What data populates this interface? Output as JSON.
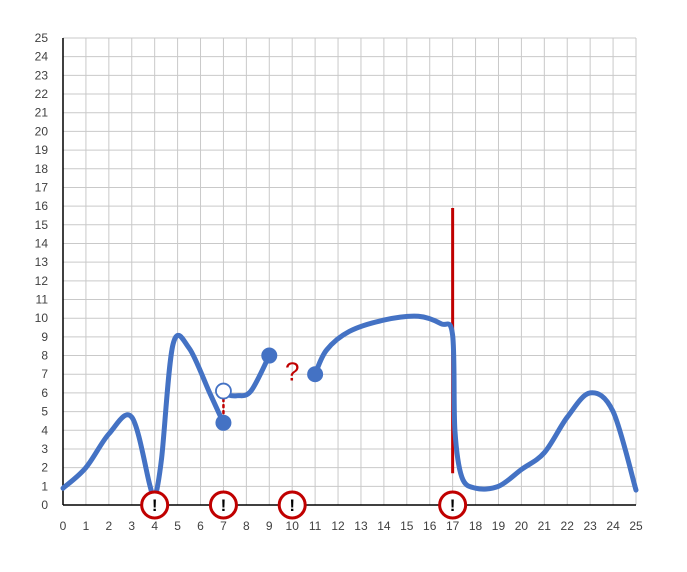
{
  "chart_data": {
    "type": "line",
    "title": "",
    "xlabel": "",
    "ylabel": "",
    "xlim": [
      0,
      25
    ],
    "ylim": [
      0,
      25
    ],
    "x_ticks": [
      "0",
      "1",
      "2",
      "3",
      "4",
      "5",
      "6",
      "7",
      "8",
      "9",
      "10",
      "11",
      "12",
      "13",
      "14",
      "15",
      "16",
      "17",
      "18",
      "19",
      "20",
      "21",
      "22",
      "23",
      "24",
      "25"
    ],
    "y_ticks": [
      "0",
      "1",
      "2",
      "3",
      "4",
      "5",
      "6",
      "7",
      "8",
      "9",
      "10",
      "11",
      "12",
      "13",
      "14",
      "15",
      "16",
      "17",
      "18",
      "19",
      "20",
      "21",
      "22",
      "23",
      "24",
      "25"
    ],
    "grid": true,
    "colors": {
      "curve": "#4472C4",
      "marker": "#4472C4",
      "open_marker_stroke": "#4472C4",
      "annotation": "#C00000",
      "grid": "#C9C9C9",
      "axis": "#000000",
      "tick_label": "#404040"
    },
    "series": [
      {
        "segment": 1,
        "points": [
          [
            0,
            0.9
          ],
          [
            1,
            2.0
          ],
          [
            2,
            3.8
          ],
          [
            3,
            4.7
          ],
          [
            3.8,
            1.0
          ],
          [
            4,
            0.4
          ],
          [
            4.3,
            2.5
          ],
          [
            4.8,
            8.6
          ],
          [
            5.5,
            8.4
          ],
          [
            6.4,
            6.0
          ],
          [
            7,
            4.4
          ]
        ]
      },
      {
        "segment": 2,
        "points": [
          [
            7,
            6.1
          ],
          [
            7.2,
            5.9
          ],
          [
            7.6,
            5.85
          ],
          [
            8.2,
            6.1
          ],
          [
            9,
            8.0
          ]
        ]
      },
      {
        "segment": 3,
        "points": [
          [
            11,
            7.0
          ],
          [
            11.5,
            8.3
          ],
          [
            12.5,
            9.3
          ],
          [
            14,
            9.9
          ],
          [
            15.5,
            10.1
          ],
          [
            16.5,
            9.7
          ],
          [
            17,
            9.1
          ],
          [
            17.1,
            4.0
          ],
          [
            17.4,
            1.5
          ],
          [
            18,
            0.9
          ],
          [
            19,
            1.0
          ],
          [
            20,
            1.9
          ],
          [
            21,
            2.8
          ],
          [
            22,
            4.7
          ],
          [
            23,
            6.0
          ],
          [
            24,
            5.0
          ],
          [
            25,
            0.8
          ]
        ]
      }
    ],
    "markers": [
      {
        "x": 7,
        "y": 4.4,
        "style": "filled"
      },
      {
        "x": 7,
        "y": 6.1,
        "style": "open"
      },
      {
        "x": 9,
        "y": 8.0,
        "style": "filled"
      },
      {
        "x": 11,
        "y": 7.0,
        "style": "filled"
      }
    ],
    "annotations": {
      "question_mark": {
        "text": "?",
        "x": 10,
        "y": 7.1
      },
      "vertical_line": {
        "x": 17,
        "y_from": 1.7,
        "y_to": 15.9
      },
      "dotted_gap": {
        "x": 7,
        "y_from": 4.6,
        "y_to": 5.7
      },
      "exclamation_marks": [
        {
          "x": 4,
          "text": "!"
        },
        {
          "x": 7,
          "text": "!"
        },
        {
          "x": 10,
          "text": "!"
        },
        {
          "x": 17,
          "text": "!"
        }
      ]
    }
  }
}
